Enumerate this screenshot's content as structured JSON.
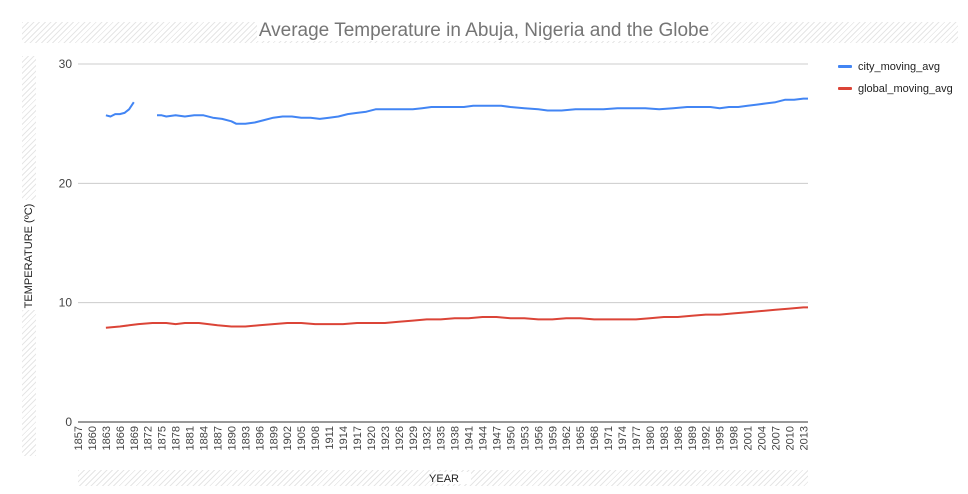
{
  "chart_data": {
    "type": "line",
    "title": "Average Temperature in Abuja, Nigeria and the Globe",
    "xlabel": "YEAR",
    "ylabel": "TEMPERATURE (ºC)",
    "ylim": [
      0,
      30
    ],
    "yticks": [
      0,
      10,
      20,
      30
    ],
    "xlim": [
      1857,
      2014
    ],
    "xtick_labels": [
      "1857",
      "1860",
      "1863",
      "1866",
      "1869",
      "1872",
      "1875",
      "1878",
      "1881",
      "1884",
      "1887",
      "1890",
      "1893",
      "1896",
      "1899",
      "1902",
      "1905",
      "1908",
      "1911",
      "1914",
      "1917",
      "1920",
      "1923",
      "1926",
      "1929",
      "1932",
      "1935",
      "1938",
      "1941",
      "1944",
      "1947",
      "1950",
      "1953",
      "1956",
      "1959",
      "1962",
      "1965",
      "1968",
      "1971",
      "1974",
      "1977",
      "1980",
      "1983",
      "1986",
      "1989",
      "1992",
      "1995",
      "1998",
      "2001",
      "2004",
      "2007",
      "2010",
      "2013"
    ],
    "grid": true,
    "legend_position": "right",
    "series": [
      {
        "name": "city_moving_avg",
        "color": "#4285f4",
        "points": [
          [
            [
              1863,
              25.7
            ],
            [
              1864,
              25.6
            ],
            [
              1865,
              25.8
            ],
            [
              1866,
              25.8
            ],
            [
              1867,
              25.9
            ],
            [
              1868,
              26.2
            ],
            [
              1869,
              26.8
            ]
          ],
          [
            [
              1874,
              25.7
            ],
            [
              1875,
              25.7
            ],
            [
              1876,
              25.6
            ],
            [
              1878,
              25.7
            ],
            [
              1880,
              25.6
            ],
            [
              1882,
              25.7
            ],
            [
              1884,
              25.7
            ],
            [
              1886,
              25.5
            ],
            [
              1888,
              25.4
            ],
            [
              1890,
              25.2
            ],
            [
              1891,
              25.0
            ],
            [
              1893,
              25.0
            ],
            [
              1895,
              25.1
            ],
            [
              1897,
              25.3
            ],
            [
              1899,
              25.5
            ],
            [
              1901,
              25.6
            ],
            [
              1903,
              25.6
            ],
            [
              1905,
              25.5
            ],
            [
              1907,
              25.5
            ],
            [
              1909,
              25.4
            ],
            [
              1911,
              25.5
            ],
            [
              1913,
              25.6
            ],
            [
              1915,
              25.8
            ],
            [
              1917,
              25.9
            ],
            [
              1919,
              26.0
            ],
            [
              1921,
              26.2
            ],
            [
              1923,
              26.2
            ],
            [
              1925,
              26.2
            ],
            [
              1927,
              26.2
            ],
            [
              1929,
              26.2
            ],
            [
              1931,
              26.3
            ],
            [
              1933,
              26.4
            ],
            [
              1935,
              26.4
            ],
            [
              1937,
              26.4
            ],
            [
              1940,
              26.4
            ],
            [
              1942,
              26.5
            ],
            [
              1945,
              26.5
            ],
            [
              1948,
              26.5
            ],
            [
              1950,
              26.4
            ],
            [
              1953,
              26.3
            ],
            [
              1956,
              26.2
            ],
            [
              1958,
              26.1
            ],
            [
              1961,
              26.1
            ],
            [
              1964,
              26.2
            ],
            [
              1967,
              26.2
            ],
            [
              1970,
              26.2
            ],
            [
              1973,
              26.3
            ],
            [
              1976,
              26.3
            ],
            [
              1979,
              26.3
            ],
            [
              1982,
              26.2
            ],
            [
              1985,
              26.3
            ],
            [
              1988,
              26.4
            ],
            [
              1990,
              26.4
            ],
            [
              1993,
              26.4
            ],
            [
              1995,
              26.3
            ],
            [
              1997,
              26.4
            ],
            [
              1999,
              26.4
            ],
            [
              2001,
              26.5
            ],
            [
              2003,
              26.6
            ],
            [
              2005,
              26.7
            ],
            [
              2007,
              26.8
            ],
            [
              2009,
              27.0
            ],
            [
              2011,
              27.0
            ],
            [
              2013,
              27.1
            ],
            [
              2014,
              27.1
            ]
          ]
        ]
      },
      {
        "name": "global_moving_avg",
        "color": "#db4437",
        "points": [
          [
            [
              1863,
              7.9
            ],
            [
              1866,
              8.0
            ],
            [
              1868,
              8.1
            ],
            [
              1870,
              8.2
            ],
            [
              1873,
              8.3
            ],
            [
              1876,
              8.3
            ],
            [
              1878,
              8.2
            ],
            [
              1880,
              8.3
            ],
            [
              1883,
              8.3
            ],
            [
              1885,
              8.2
            ],
            [
              1887,
              8.1
            ],
            [
              1890,
              8.0
            ],
            [
              1893,
              8.0
            ],
            [
              1896,
              8.1
            ],
            [
              1899,
              8.2
            ],
            [
              1902,
              8.3
            ],
            [
              1905,
              8.3
            ],
            [
              1908,
              8.2
            ],
            [
              1911,
              8.2
            ],
            [
              1914,
              8.2
            ],
            [
              1917,
              8.3
            ],
            [
              1920,
              8.3
            ],
            [
              1923,
              8.3
            ],
            [
              1926,
              8.4
            ],
            [
              1929,
              8.5
            ],
            [
              1932,
              8.6
            ],
            [
              1935,
              8.6
            ],
            [
              1938,
              8.7
            ],
            [
              1941,
              8.7
            ],
            [
              1944,
              8.8
            ],
            [
              1947,
              8.8
            ],
            [
              1950,
              8.7
            ],
            [
              1953,
              8.7
            ],
            [
              1956,
              8.6
            ],
            [
              1959,
              8.6
            ],
            [
              1962,
              8.7
            ],
            [
              1965,
              8.7
            ],
            [
              1968,
              8.6
            ],
            [
              1971,
              8.6
            ],
            [
              1974,
              8.6
            ],
            [
              1977,
              8.6
            ],
            [
              1980,
              8.7
            ],
            [
              1983,
              8.8
            ],
            [
              1986,
              8.8
            ],
            [
              1989,
              8.9
            ],
            [
              1992,
              9.0
            ],
            [
              1995,
              9.0
            ],
            [
              1998,
              9.1
            ],
            [
              2001,
              9.2
            ],
            [
              2004,
              9.3
            ],
            [
              2007,
              9.4
            ],
            [
              2010,
              9.5
            ],
            [
              2013,
              9.6
            ],
            [
              2014,
              9.6
            ]
          ]
        ]
      }
    ]
  }
}
